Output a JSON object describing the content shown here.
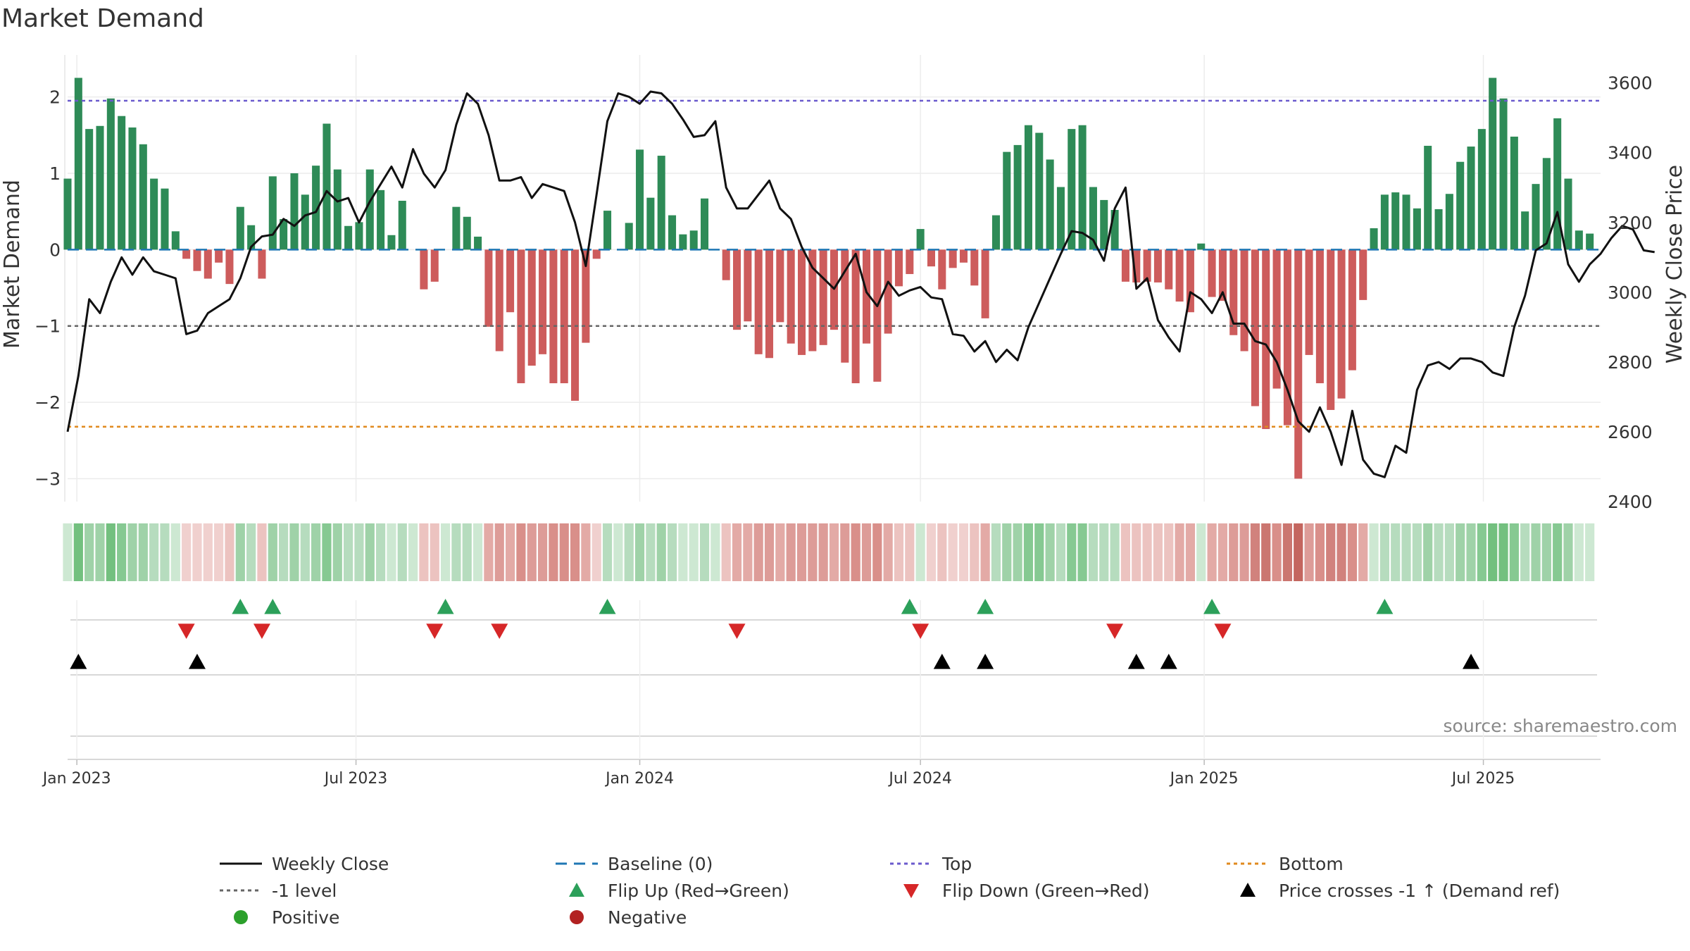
{
  "chart_data": {
    "type": "bar",
    "title": "Market Demand",
    "ylabel": "Market Demand",
    "y2label": "Weekly Close Price",
    "ylim": [
      -3.3,
      2.55
    ],
    "y2lim": [
      2400,
      3680
    ],
    "yticks": [
      -3,
      -2,
      -1,
      0,
      1,
      2
    ],
    "yticks_labels": [
      "−3",
      "−2",
      "−1",
      "0",
      "1",
      "2"
    ],
    "y2ticks": [
      2400,
      2600,
      2800,
      3000,
      3200,
      3400,
      3600
    ],
    "x_start": "2022-12-26",
    "x_end": "2025-09-15",
    "xticks": [
      {
        "label": "Jan 2023",
        "date": "2023-01-01"
      },
      {
        "label": "Jul 2023",
        "date": "2023-07-01"
      },
      {
        "label": "Jan 2024",
        "date": "2024-01-01"
      },
      {
        "label": "Jul 2024",
        "date": "2024-07-01"
      },
      {
        "label": "Jan 2025",
        "date": "2025-01-01"
      },
      {
        "label": "Jul 2025",
        "date": "2025-07-01"
      }
    ],
    "bar_start": "2022-12-26",
    "demand": [
      0.93,
      2.25,
      1.58,
      1.62,
      1.98,
      1.75,
      1.6,
      1.38,
      0.93,
      0.8,
      0.24,
      -0.12,
      -0.28,
      -0.38,
      -0.17,
      -0.45,
      0.56,
      0.32,
      -0.38,
      0.96,
      0.4,
      1.0,
      0.72,
      1.1,
      1.65,
      1.05,
      0.31,
      0.36,
      1.05,
      0.78,
      0.19,
      0.64,
      0.0,
      -0.52,
      -0.42,
      0.0,
      0.56,
      0.43,
      0.17,
      -1.01,
      -1.33,
      -0.82,
      -1.75,
      -1.52,
      -1.37,
      -1.75,
      -1.75,
      -1.98,
      -1.22,
      -0.12,
      0.51,
      0.0,
      0.35,
      1.31,
      0.68,
      1.23,
      0.45,
      0.2,
      0.25,
      0.67,
      0.0,
      -0.4,
      -1.05,
      -0.94,
      -1.37,
      -1.42,
      -0.95,
      -1.23,
      -1.38,
      -1.33,
      -1.25,
      -1.05,
      -1.48,
      -1.75,
      -1.23,
      -1.73,
      -1.1,
      -0.48,
      -0.32,
      0.27,
      -0.22,
      -0.52,
      -0.24,
      -0.17,
      -0.47,
      -0.9,
      0.45,
      1.28,
      1.37,
      1.63,
      1.53,
      1.18,
      0.82,
      1.58,
      1.63,
      0.82,
      0.65,
      0.52,
      -0.42,
      -0.43,
      -0.42,
      -0.43,
      -0.52,
      -0.68,
      -0.82,
      0.08,
      -0.62,
      -0.67,
      -1.12,
      -1.33,
      -2.05,
      -2.35,
      -1.82,
      -2.3,
      -3.0,
      -1.38,
      -1.75,
      -2.1,
      -1.95,
      -1.58,
      -0.66,
      0.28,
      0.72,
      0.75,
      0.72,
      0.54,
      1.36,
      0.53,
      0.73,
      1.15,
      1.35,
      1.58,
      2.25,
      1.98,
      1.48,
      0.5,
      0.86,
      1.2,
      1.72,
      0.93,
      0.25,
      0.21
    ],
    "close_start": "2022-12-26",
    "close": [
      2600,
      2760,
      2980,
      2940,
      3030,
      3100,
      3050,
      3100,
      3060,
      3050,
      3040,
      2880,
      2890,
      2940,
      2960,
      2980,
      3040,
      3130,
      3160,
      3165,
      3210,
      3190,
      3220,
      3230,
      3290,
      3260,
      3270,
      3200,
      3260,
      3310,
      3360,
      3300,
      3410,
      3340,
      3300,
      3350,
      3480,
      3570,
      3540,
      3450,
      3320,
      3320,
      3330,
      3270,
      3310,
      3300,
      3290,
      3200,
      3075,
      3280,
      3490,
      3570,
      3560,
      3540,
      3575,
      3570,
      3540,
      3495,
      3445,
      3450,
      3490,
      3300,
      3240,
      3240,
      3280,
      3320,
      3240,
      3210,
      3130,
      3070,
      3040,
      3010,
      3060,
      3110,
      3000,
      2960,
      3030,
      2990,
      3005,
      3015,
      2985,
      2980,
      2880,
      2875,
      2830,
      2860,
      2800,
      2835,
      2805,
      2900,
      2970,
      3040,
      3110,
      3175,
      3170,
      3150,
      3090,
      3240,
      3300,
      3010,
      3040,
      2920,
      2870,
      2830,
      3000,
      2980,
      2940,
      3000,
      2910,
      2910,
      2860,
      2850,
      2800,
      2720,
      2630,
      2600,
      2670,
      2600,
      2505,
      2660,
      2520,
      2480,
      2470,
      2560,
      2540,
      2720,
      2790,
      2800,
      2780,
      2810,
      2810,
      2800,
      2770,
      2760,
      2900,
      2990,
      3120,
      3140,
      3230,
      3080,
      3030,
      3080,
      3110,
      3155,
      3190,
      3180,
      3120,
      3115
    ]
  },
  "heatstrip": {
    "start": "2022-12-26",
    "colors": [
      "#cde8d2",
      "#73c07f",
      "#9fd2a8",
      "#9fd2a8",
      "#73c07f",
      "#86c992",
      "#9fd2a8",
      "#9fd2a8",
      "#b6dcbe",
      "#b6dcbe",
      "#cde8d2",
      "#f0d0ce",
      "#f0d0ce",
      "#f0d0ce",
      "#f0d0ce",
      "#ecc3c0",
      "#9fd2a8",
      "#b6dcbe",
      "#ecc3c0",
      "#9fd2a8",
      "#b6dcbe",
      "#9fd2a8",
      "#b6dcbe",
      "#9fd2a8",
      "#86c992",
      "#9fd2a8",
      "#b6dcbe",
      "#b6dcbe",
      "#9fd2a8",
      "#b6dcbe",
      "#cde8d2",
      "#b6dcbe",
      "#cde8d2",
      "#ecc3c0",
      "#ecc3c0",
      "#cde8d2",
      "#b6dcbe",
      "#b6dcbe",
      "#cde8d2",
      "#e3aaa6",
      "#dd9c98",
      "#e3aaa6",
      "#d98f8a",
      "#dd9c98",
      "#dd9c98",
      "#d98f8a",
      "#d98f8a",
      "#d98f8a",
      "#e3aaa6",
      "#f0d0ce",
      "#b6dcbe",
      "#cde8d2",
      "#b6dcbe",
      "#9fd2a8",
      "#b6dcbe",
      "#9fd2a8",
      "#b6dcbe",
      "#cde8d2",
      "#cde8d2",
      "#b6dcbe",
      "#cde8d2",
      "#ecc3c0",
      "#e3aaa6",
      "#e3aaa6",
      "#dd9c98",
      "#dd9c98",
      "#e3aaa6",
      "#dd9c98",
      "#dd9c98",
      "#dd9c98",
      "#dd9c98",
      "#e3aaa6",
      "#dd9c98",
      "#d98f8a",
      "#dd9c98",
      "#d98f8a",
      "#e3aaa6",
      "#ecc3c0",
      "#ecc3c0",
      "#cde8d2",
      "#f0d0ce",
      "#ecc3c0",
      "#f0d0ce",
      "#f0d0ce",
      "#ecc3c0",
      "#e3aaa6",
      "#b6dcbe",
      "#9fd2a8",
      "#9fd2a8",
      "#86c992",
      "#86c992",
      "#9fd2a8",
      "#b6dcbe",
      "#86c992",
      "#86c992",
      "#b6dcbe",
      "#b6dcbe",
      "#b6dcbe",
      "#ecc3c0",
      "#ecc3c0",
      "#ecc3c0",
      "#ecc3c0",
      "#ecc3c0",
      "#e3aaa6",
      "#e3aaa6",
      "#cde8d2",
      "#e3aaa6",
      "#e3aaa6",
      "#dd9c98",
      "#dd9c98",
      "#d1827d",
      "#cb7670",
      "#d98f8a",
      "#cb7670",
      "#c4665f",
      "#dd9c98",
      "#d98f8a",
      "#d1827d",
      "#d1827d",
      "#d98f8a",
      "#e3aaa6",
      "#cde8d2",
      "#b6dcbe",
      "#b6dcbe",
      "#b6dcbe",
      "#b6dcbe",
      "#9fd2a8",
      "#b6dcbe",
      "#b6dcbe",
      "#9fd2a8",
      "#9fd2a8",
      "#86c992",
      "#73c07f",
      "#73c07f",
      "#86c992",
      "#b6dcbe",
      "#9fd2a8",
      "#9fd2a8",
      "#86c992",
      "#9fd2a8",
      "#cde8d2",
      "#cde8d2"
    ]
  },
  "flip_up_dates": [
    "2023-04-17",
    "2023-05-08",
    "2023-08-28",
    "2023-12-11",
    "2024-06-24",
    "2024-08-12",
    "2025-01-06",
    "2025-04-28"
  ],
  "flip_down_dates": [
    "2023-03-13",
    "2023-05-01",
    "2023-08-21",
    "2023-10-02",
    "2024-03-04",
    "2024-07-01",
    "2024-11-04",
    "2025-01-13"
  ],
  "cross_up_dates": [
    "2023-01-02",
    "2023-03-20",
    "2024-07-15",
    "2024-08-12",
    "2024-11-18",
    "2024-12-09",
    "2025-06-23"
  ],
  "colors": {
    "positive_bar": "#2e8b57",
    "negative_bar": "#cd5c5c",
    "close_line": "#111111",
    "baseline": "#1f77b4",
    "top_line": "#6a5acd",
    "bottom_line": "#e08a1e",
    "minus1_line": "#666666",
    "flip_up": "#2ca05a",
    "flip_down": "#d62728",
    "cross_up": "#000000",
    "positive_dot": "#2ca02c",
    "negative_dot": "#b22222"
  },
  "reference_lines": {
    "top": 1.95,
    "bottom": -2.32,
    "minus1": -1,
    "baseline": 0
  },
  "legend": [
    {
      "label": "Weekly Close",
      "kind": "line-solid"
    },
    {
      "label": "Baseline (0)",
      "kind": "line-dash"
    },
    {
      "label": "Top",
      "kind": "line-dot-top"
    },
    {
      "label": "Bottom",
      "kind": "line-dot-bottom"
    },
    {
      "label": "-1 level",
      "kind": "line-dot-gray"
    },
    {
      "label": "Flip Up (Red→Green)",
      "kind": "tri-up-green"
    },
    {
      "label": "Flip Down (Green→Red)",
      "kind": "tri-down-red"
    },
    {
      "label": "Price crosses -1 ↑ (Demand ref)",
      "kind": "tri-up-black"
    },
    {
      "label": "Positive",
      "kind": "dot-green"
    },
    {
      "label": "Negative",
      "kind": "dot-red"
    }
  ],
  "source": "source: sharemaestro.com"
}
